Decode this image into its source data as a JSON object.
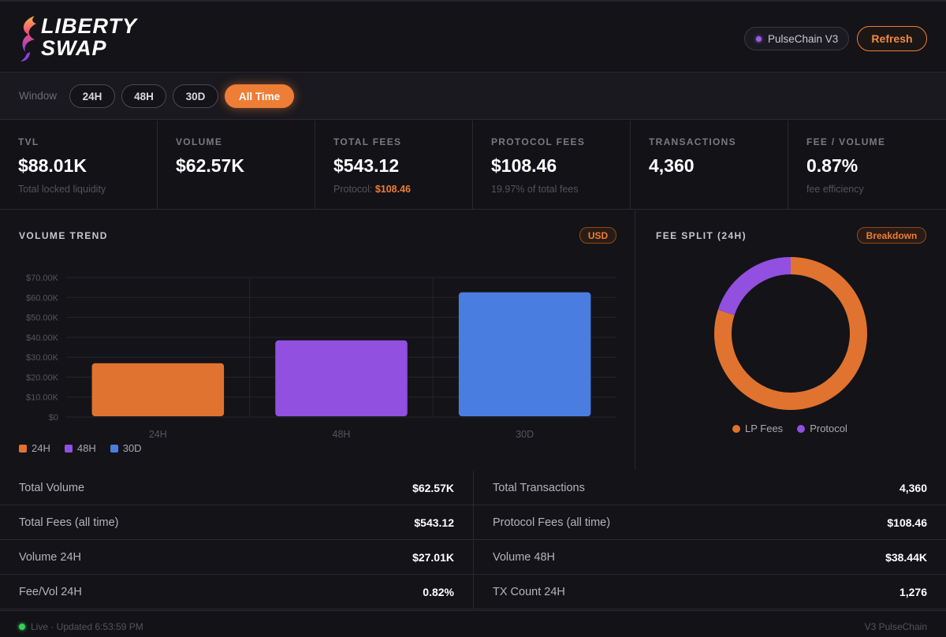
{
  "header": {
    "logo_line1": "LIBERTY",
    "logo_line2": "SWAP",
    "network": "PulseChain V3",
    "refresh_label": "Refresh"
  },
  "window": {
    "label": "Window",
    "options": [
      "24H",
      "48H",
      "30D",
      "All Time"
    ],
    "active": "All Time"
  },
  "stats": [
    {
      "label": "TVL",
      "value": "$88.01K",
      "sub": "Total locked liquidity"
    },
    {
      "label": "VOLUME",
      "value": "$62.57K",
      "sub": ""
    },
    {
      "label": "TOTAL FEES",
      "value": "$543.12",
      "sub_prefix": "Protocol: ",
      "sub_accent": "$108.46"
    },
    {
      "label": "PROTOCOL FEES",
      "value": "$108.46",
      "sub": "19.97% of total fees"
    },
    {
      "label": "TRANSACTIONS",
      "value": "4,360",
      "sub": ""
    },
    {
      "label": "FEE / VOLUME",
      "value": "0.87%",
      "sub": "fee efficiency"
    }
  ],
  "volume_panel": {
    "title": "VOLUME TREND",
    "badge": "USD"
  },
  "fee_panel": {
    "title": "FEE SPLIT (24H)",
    "badge": "Breakdown"
  },
  "chart_data": [
    {
      "type": "bar",
      "categories": [
        "24H",
        "48H",
        "30D"
      ],
      "values": [
        27010,
        38440,
        62570
      ],
      "colors": [
        "#e0732f",
        "#9150e0",
        "#4a7de0"
      ],
      "yticks": [
        "$0",
        "$10.00K",
        "$20.00K",
        "$30.00K",
        "$40.00K",
        "$50.00K",
        "$60.00K",
        "$70.00K"
      ],
      "ylim": [
        0,
        70000
      ],
      "legend": [
        "24H",
        "48H",
        "30D"
      ],
      "legend_position": "bottom-left",
      "grid": true
    },
    {
      "type": "pie",
      "donut": true,
      "labels": [
        "LP Fees",
        "Protocol"
      ],
      "values": [
        80.03,
        19.97
      ],
      "colors": [
        "#e0732f",
        "#9150e0"
      ],
      "legend_position": "bottom"
    }
  ],
  "summary": {
    "left": [
      {
        "label": "Total Volume",
        "value": "$62.57K"
      },
      {
        "label": "Total Fees (all time)",
        "value": "$543.12"
      },
      {
        "label": "Volume 24H",
        "value": "$27.01K"
      },
      {
        "label": "Fee/Vol 24H",
        "value": "0.82%"
      }
    ],
    "right": [
      {
        "label": "Total Transactions",
        "value": "4,360"
      },
      {
        "label": "Protocol Fees (all time)",
        "value": "$108.46"
      },
      {
        "label": "Volume 48H",
        "value": "$38.44K"
      },
      {
        "label": "TX Count 24H",
        "value": "1,276"
      }
    ]
  },
  "footer": {
    "status": "Live · Updated 6:53:59 PM",
    "right": "V3 PulseChain"
  }
}
